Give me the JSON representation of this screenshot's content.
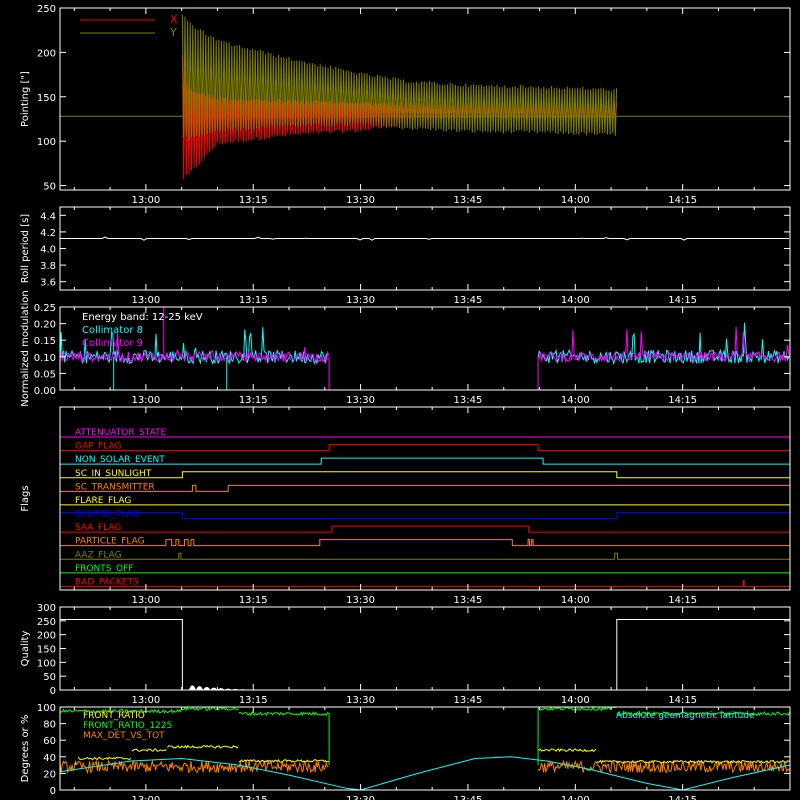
{
  "chart_data": [
    {
      "type": "line",
      "ylabel": "Pointing [\"]",
      "ylim": [
        45,
        250
      ],
      "yticks": [
        50,
        100,
        150,
        200,
        250
      ],
      "xticks": [
        "13:00",
        "13:15",
        "13:30",
        "13:45",
        "14:00",
        "14:15"
      ],
      "xtick_minutes": [
        0,
        15,
        30,
        45,
        60,
        75
      ],
      "xlim_minutes": [
        -12,
        90
      ],
      "legend": [
        "X",
        "Y"
      ],
      "colors": {
        "X": "#ff0000",
        "Y": "#808000",
        "center": "#808000"
      },
      "center_value": 128,
      "series": [
        {
          "name": "X",
          "start_minute": 5.1,
          "end_minute": 65.8,
          "envelope_time": [
            5.1,
            6,
            10,
            20,
            30,
            36,
            45,
            55,
            65.8
          ],
          "envelope_upper": [
            200,
            160,
            150,
            147,
            145,
            144,
            142,
            142,
            143
          ],
          "envelope_lower": [
            55,
            60,
            95,
            105,
            110,
            117,
            121,
            121,
            121
          ]
        },
        {
          "name": "Y",
          "start_minute": 5.1,
          "end_minute": 65.8,
          "envelope_time": [
            5.1,
            6,
            10,
            20,
            30,
            36,
            45,
            55,
            65.8
          ],
          "envelope_upper": [
            245,
            235,
            215,
            195,
            178,
            170,
            165,
            163,
            160
          ],
          "envelope_lower": [
            105,
            100,
            110,
            115,
            117,
            113,
            109,
            108,
            105
          ]
        }
      ]
    },
    {
      "type": "line",
      "ylabel": "Roll period [s]",
      "ylim": [
        3.5,
        4.5
      ],
      "yticks": [
        "3.6",
        "3.8",
        "4.0",
        "4.2",
        "4.4"
      ],
      "xticks": [
        "13:00",
        "13:15",
        "13:30",
        "13:45",
        "14:00",
        "14:15"
      ],
      "series": [
        {
          "name": "roll",
          "value": 4.12
        }
      ]
    },
    {
      "type": "line",
      "ylabel": "Normalized modulation",
      "ylim": [
        0,
        0.25
      ],
      "yticks": [
        "0.00",
        "0.05",
        "0.10",
        "0.15",
        "0.20",
        "0.25"
      ],
      "xticks": [
        "13:00",
        "13:15",
        "13:30",
        "13:45",
        "14:00",
        "14:15"
      ],
      "annotation": "Energy band: 12-25 keV",
      "legend": [
        "Collimator 8",
        "Collimator 9"
      ],
      "colors": {
        "Collimator 8": "#00ffff",
        "Collimator 9": "#ff00ff"
      },
      "series": [
        {
          "name": "Collimator 8",
          "segments_minutes": [
            [
              -12,
              25.6
            ],
            [
              54.8,
              90
            ]
          ],
          "baseline": 0.1
        },
        {
          "name": "Collimator 9",
          "segments_minutes": [
            [
              -12,
              25.6
            ],
            [
              54.8,
              90
            ]
          ],
          "baseline": 0.1
        }
      ],
      "gap_minutes": [
        25.6,
        54.8
      ]
    },
    {
      "type": "line",
      "ylabel": "Flags",
      "xticks": [
        "13:00",
        "13:15",
        "13:30",
        "13:45",
        "14:00",
        "14:15"
      ],
      "flags": [
        {
          "name": "ATTENUATOR_STATE",
          "color": "#ff00ff",
          "changes": []
        },
        {
          "name": "GAP_FLAG",
          "color": "#ff0000",
          "changes": [
            [
              25.6,
              1
            ],
            [
              54.8,
              0
            ]
          ]
        },
        {
          "name": "NON_SOLAR_EVENT",
          "color": "#00ffff",
          "changes": [
            [
              24.5,
              1
            ],
            [
              55.5,
              0
            ]
          ]
        },
        {
          "name": "SC_IN_SUNLIGHT",
          "color": "#ffff00",
          "changes": [
            [
              5.1,
              1
            ],
            [
              65.8,
              0
            ]
          ]
        },
        {
          "name": "SC_TRANSMITTER",
          "color": "#ff8000",
          "changes": [
            [
              6.5,
              1
            ],
            [
              7.0,
              0
            ],
            [
              11.5,
              1
            ]
          ]
        },
        {
          "name": "FLARE_FLAG",
          "color": "#ffff00",
          "changes": []
        },
        {
          "name": "ECLIPSE_FLAG",
          "color": "#0000ff",
          "changes": [
            [
              5.1,
              0
            ],
            [
              65.8,
              1
            ]
          ],
          "initial": 1
        },
        {
          "name": "SAA_FLAG",
          "color": "#ff0000",
          "changes": [
            [
              26,
              1
            ],
            [
              53.5,
              0
            ]
          ]
        },
        {
          "name": "PARTICLE_FLAG",
          "color": "#ff8000",
          "changes": [
            [
              2.8,
              1
            ],
            [
              3.6,
              0
            ],
            [
              4.2,
              1
            ],
            [
              4.6,
              0
            ],
            [
              5.4,
              1
            ],
            [
              5.9,
              0
            ],
            [
              6.3,
              1
            ],
            [
              6.7,
              0
            ],
            [
              24.3,
              1
            ],
            [
              51.2,
              0
            ],
            [
              53.4,
              1
            ],
            [
              53.6,
              0
            ],
            [
              53.9,
              1
            ],
            [
              54.1,
              0
            ]
          ]
        },
        {
          "name": "AAZ_FLAG",
          "color": "#808000",
          "changes": [
            [
              4.6,
              1
            ],
            [
              4.9,
              0
            ],
            [
              65.5,
              1
            ],
            [
              65.9,
              0
            ]
          ]
        },
        {
          "name": "FRONTS_OFF",
          "color": "#00ff00",
          "changes": []
        },
        {
          "name": "BAD_PACKETS",
          "color": "#ff0000",
          "changes": [
            [
              83.5,
              1
            ],
            [
              83.6,
              0
            ]
          ]
        }
      ]
    },
    {
      "type": "line",
      "ylabel": "Quality",
      "ylim": [
        0,
        300
      ],
      "yticks": [
        "0",
        "50",
        "100",
        "150",
        "200",
        "250",
        "300"
      ],
      "xticks": [
        "13:00",
        "13:15",
        "13:30",
        "13:45",
        "14:00",
        "14:15"
      ],
      "series": [
        {
          "name": "quality",
          "points_minutes": [
            [
              -12,
              255
            ],
            [
              5.1,
              255
            ],
            [
              5.1,
              0
            ],
            [
              65.8,
              0
            ],
            [
              65.8,
              255
            ],
            [
              90,
              255
            ]
          ],
          "decay_bursts": [
            [
              6.5,
              15
            ],
            [
              7.5,
              12
            ],
            [
              8.5,
              9
            ],
            [
              9.5,
              7
            ],
            [
              10.5,
              5
            ],
            [
              11.5,
              3
            ],
            [
              12.5,
              2
            ],
            [
              13.5,
              1
            ]
          ]
        }
      ]
    },
    {
      "type": "line",
      "ylabel": "Degrees or %",
      "ylim": [
        0,
        100
      ],
      "yticks": [
        "0",
        "20",
        "40",
        "60",
        "80",
        "100"
      ],
      "xticks": [
        "13:00",
        "13:15",
        "13:30",
        "13:45",
        "14:00",
        "14:15"
      ],
      "legend": [
        "FRONT_RATIO",
        "FRONT_RATIO_1225",
        "MAX_DET_VS_TOT",
        "Absolute geomagnetic latitude"
      ],
      "colors": {
        "FRONT_RATIO": "#ffff00",
        "FRONT_RATIO_1225": "#00ff00",
        "MAX_DET_VS_TOT": "#ff8000",
        "Absolute geomagnetic latitude": "#00ffff"
      },
      "series": [
        {
          "name": "FRONT_RATIO_1225",
          "levels_minutes": [
            [
              -12,
              5.1,
              95
            ],
            [
              5.1,
              13,
              98
            ],
            [
              13,
              25.6,
              92
            ],
            [
              54.8,
              65.8,
              98
            ],
            [
              65.8,
              90,
              92
            ]
          ]
        },
        {
          "name": "FRONT_RATIO",
          "levels_minutes": [
            [
              -10,
              -9.5,
              32
            ],
            [
              -9.5,
              -2,
              38
            ],
            [
              -2,
              3,
              48
            ],
            [
              3,
              13,
              52
            ],
            [
              13,
              25.6,
              35
            ],
            [
              54.8,
              63,
              48
            ],
            [
              63,
              90,
              34
            ]
          ]
        },
        {
          "name": "MAX_DET_VS_TOT",
          "level": 28
        },
        {
          "name": "Absolute geomagnetic latitude",
          "points_minutes": [
            [
              -12,
              22
            ],
            [
              -2,
              35
            ],
            [
              5,
              38
            ],
            [
              13,
              30
            ],
            [
              20,
              18
            ],
            [
              28,
              2
            ],
            [
              30,
              0
            ],
            [
              38,
              20
            ],
            [
              46,
              38
            ],
            [
              51,
              40
            ],
            [
              56,
              35
            ],
            [
              62,
              25
            ],
            [
              70,
              8
            ],
            [
              75,
              0
            ],
            [
              82,
              15
            ],
            [
              90,
              30
            ]
          ]
        }
      ]
    }
  ]
}
